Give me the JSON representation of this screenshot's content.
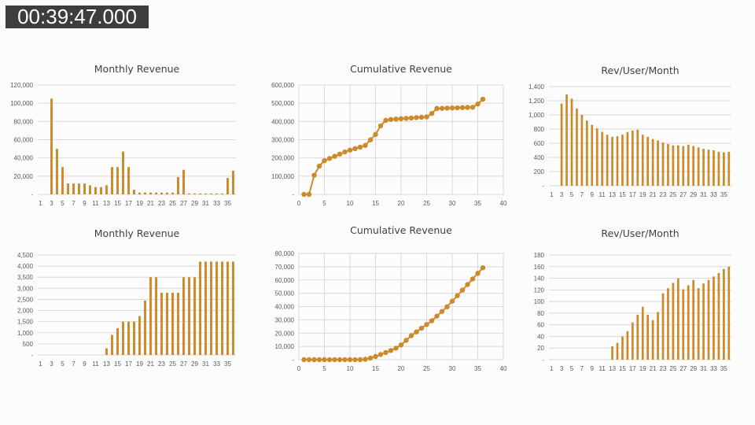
{
  "timestamp": "00:39:47.000",
  "colors": {
    "series": "#cc8a2a",
    "grid": "#d9d9d9",
    "text": "#595959"
  },
  "chart_data": [
    {
      "type": "bar",
      "title": "Monthly Revenue",
      "categories": [
        1,
        2,
        3,
        4,
        5,
        6,
        7,
        8,
        9,
        10,
        11,
        12,
        13,
        14,
        15,
        16,
        17,
        18,
        19,
        20,
        21,
        22,
        23,
        24,
        25,
        26,
        27,
        28,
        29,
        30,
        31,
        32,
        33,
        34,
        35,
        36
      ],
      "x_tick_labels": [
        "1",
        "3",
        "5",
        "7",
        "9",
        "11",
        "13",
        "15",
        "17",
        "19",
        "21",
        "23",
        "25",
        "27",
        "29",
        "31",
        "33",
        "35"
      ],
      "values": [
        0,
        0,
        105000,
        50000,
        30000,
        12000,
        12000,
        12000,
        12000,
        10000,
        8000,
        8000,
        10000,
        30000,
        30000,
        47000,
        30000,
        5000,
        2000,
        2000,
        2000,
        2000,
        2000,
        2000,
        2000,
        19000,
        27000,
        1000,
        1000,
        1000,
        1000,
        1000,
        1000,
        1000,
        18000,
        26000
      ],
      "ylim": [
        0,
        120000
      ],
      "y_ticks": [
        0,
        20000,
        40000,
        60000,
        80000,
        100000,
        120000
      ],
      "y_tick_labels": [
        "-",
        "20,000",
        "40,000",
        "60,000",
        "80,000",
        "100,000",
        "120,000"
      ],
      "grid": true
    },
    {
      "type": "line",
      "title": "Cumulative Revenue",
      "x": [
        1,
        2,
        3,
        4,
        5,
        6,
        7,
        8,
        9,
        10,
        11,
        12,
        13,
        14,
        15,
        16,
        17,
        18,
        19,
        20,
        21,
        22,
        23,
        24,
        25,
        26,
        27,
        28,
        29,
        30,
        31,
        32,
        33,
        34,
        35,
        36
      ],
      "values": [
        0,
        0,
        105000,
        155000,
        185000,
        197000,
        209000,
        221000,
        233000,
        243000,
        251000,
        259000,
        269000,
        299000,
        329000,
        376000,
        406000,
        411000,
        413000,
        415000,
        417000,
        419000,
        421000,
        423000,
        425000,
        444000,
        471000,
        472000,
        473000,
        474000,
        475000,
        476000,
        477000,
        478000,
        496000,
        522000
      ],
      "xlim": [
        0,
        40
      ],
      "x_ticks": [
        0,
        5,
        10,
        15,
        20,
        25,
        30,
        35,
        40
      ],
      "x_tick_labels": [
        "0",
        "5",
        "10",
        "15",
        "20",
        "25",
        "30",
        "35",
        "40"
      ],
      "ylim": [
        0,
        600000
      ],
      "y_ticks": [
        0,
        100000,
        200000,
        300000,
        400000,
        500000,
        600000
      ],
      "y_tick_labels": [
        "-",
        "100,000",
        "200,000",
        "300,000",
        "400,000",
        "500,000",
        "600,000"
      ],
      "grid": true
    },
    {
      "type": "bar",
      "title": "Rev/User/Month",
      "categories": [
        1,
        2,
        3,
        4,
        5,
        6,
        7,
        8,
        9,
        10,
        11,
        12,
        13,
        14,
        15,
        16,
        17,
        18,
        19,
        20,
        21,
        22,
        23,
        24,
        25,
        26,
        27,
        28,
        29,
        30,
        31,
        32,
        33,
        34,
        35,
        36
      ],
      "x_tick_labels": [
        "1",
        "3",
        "5",
        "7",
        "9",
        "11",
        "13",
        "15",
        "17",
        "19",
        "21",
        "23",
        "25",
        "27",
        "29",
        "31",
        "33",
        "35"
      ],
      "values": [
        0,
        0,
        1160,
        1290,
        1230,
        1090,
        1000,
        920,
        860,
        810,
        760,
        720,
        690,
        700,
        720,
        760,
        780,
        790,
        720,
        690,
        660,
        640,
        610,
        590,
        570,
        570,
        560,
        580,
        560,
        540,
        520,
        510,
        500,
        480,
        470,
        480
      ],
      "ylim": [
        0,
        1400
      ],
      "y_ticks": [
        0,
        200,
        400,
        600,
        800,
        1000,
        1200,
        1400
      ],
      "y_tick_labels": [
        "-",
        "200",
        "400",
        "600",
        "800",
        "1,000",
        "1,200",
        "1,400"
      ],
      "grid": true
    },
    {
      "type": "bar",
      "title": "Monthly Revenue",
      "categories": [
        1,
        2,
        3,
        4,
        5,
        6,
        7,
        8,
        9,
        10,
        11,
        12,
        13,
        14,
        15,
        16,
        17,
        18,
        19,
        20,
        21,
        22,
        23,
        24,
        25,
        26,
        27,
        28,
        29,
        30,
        31,
        32,
        33,
        34,
        35,
        36
      ],
      "x_tick_labels": [
        "1",
        "3",
        "5",
        "7",
        "9",
        "11",
        "13",
        "15",
        "17",
        "19",
        "21",
        "23",
        "25",
        "27",
        "29",
        "31",
        "33",
        "35"
      ],
      "values": [
        0,
        0,
        0,
        0,
        0,
        0,
        0,
        0,
        0,
        0,
        0,
        0,
        300,
        900,
        1200,
        1500,
        1500,
        1500,
        1750,
        2450,
        3500,
        3500,
        2800,
        2800,
        2800,
        2800,
        3500,
        3500,
        3500,
        4200,
        4200,
        4200,
        4200,
        4200,
        4200,
        4200
      ],
      "ylim": [
        0,
        4500
      ],
      "y_ticks": [
        0,
        500,
        1000,
        1500,
        2000,
        2500,
        3000,
        3500,
        4000,
        4500
      ],
      "y_tick_labels": [
        "-",
        "500",
        "1,000",
        "1,500",
        "2,000",
        "2,500",
        "3,000",
        "3,500",
        "4,000",
        "4,500"
      ],
      "grid": true
    },
    {
      "type": "line",
      "title": "Cumulative Revenue",
      "x": [
        1,
        2,
        3,
        4,
        5,
        6,
        7,
        8,
        9,
        10,
        11,
        12,
        13,
        14,
        15,
        16,
        17,
        18,
        19,
        20,
        21,
        22,
        23,
        24,
        25,
        26,
        27,
        28,
        29,
        30,
        31,
        32,
        33,
        34,
        35,
        36
      ],
      "values": [
        0,
        0,
        0,
        0,
        0,
        0,
        0,
        0,
        0,
        0,
        0,
        0,
        300,
        1200,
        2400,
        3900,
        5400,
        6900,
        8650,
        11100,
        14600,
        18100,
        20900,
        23700,
        26500,
        29300,
        32800,
        36300,
        39800,
        44000,
        48200,
        52400,
        56600,
        60800,
        65000,
        69200
      ],
      "xlim": [
        0,
        40
      ],
      "x_ticks": [
        0,
        5,
        10,
        15,
        20,
        25,
        30,
        35,
        40
      ],
      "x_tick_labels": [
        "0",
        "5",
        "10",
        "15",
        "20",
        "25",
        "30",
        "35",
        "40"
      ],
      "ylim": [
        0,
        80000
      ],
      "y_ticks": [
        0,
        10000,
        20000,
        30000,
        40000,
        50000,
        60000,
        70000,
        80000
      ],
      "y_tick_labels": [
        "-",
        "10,000",
        "20,000",
        "30,000",
        "40,000",
        "50,000",
        "60,000",
        "70,000",
        "80,000"
      ],
      "grid": true
    },
    {
      "type": "bar",
      "title": "Rev/User/Month",
      "categories": [
        1,
        2,
        3,
        4,
        5,
        6,
        7,
        8,
        9,
        10,
        11,
        12,
        13,
        14,
        15,
        16,
        17,
        18,
        19,
        20,
        21,
        22,
        23,
        24,
        25,
        26,
        27,
        28,
        29,
        30,
        31,
        32,
        33,
        34,
        35,
        36
      ],
      "x_tick_labels": [
        "1",
        "3",
        "5",
        "7",
        "9",
        "11",
        "13",
        "15",
        "17",
        "19",
        "21",
        "23",
        "25",
        "27",
        "29",
        "31",
        "33",
        "35"
      ],
      "values": [
        0,
        0,
        0,
        0,
        0,
        0,
        0,
        0,
        0,
        0,
        0,
        0,
        23,
        29,
        40,
        49,
        64,
        77,
        91,
        77,
        68,
        82,
        114,
        123,
        132,
        140,
        121,
        128,
        137,
        123,
        131,
        137,
        143,
        149,
        156,
        160
      ],
      "ylim": [
        0,
        180
      ],
      "y_ticks": [
        0,
        20,
        40,
        60,
        80,
        100,
        120,
        140,
        160,
        180
      ],
      "y_tick_labels": [
        "-",
        "20",
        "40",
        "60",
        "80",
        "100",
        "120",
        "140",
        "160",
        "180"
      ],
      "grid": true
    }
  ]
}
